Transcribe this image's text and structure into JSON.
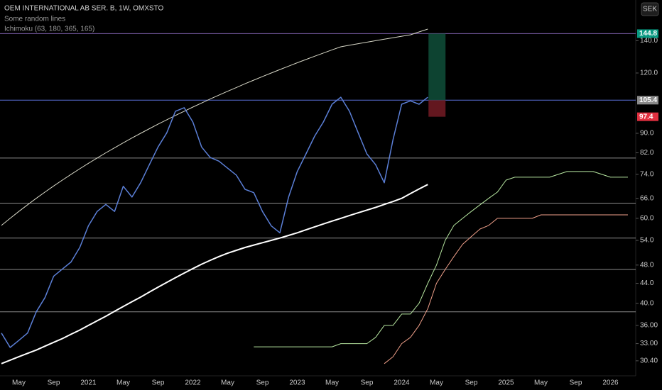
{
  "chart_data": {
    "type": "line",
    "title": "OEM INTERNATIONAL AB SER. B, 1W, OMXSTO",
    "legend": [
      "Some random lines",
      "Ichimoku (63, 180, 365, 165)"
    ],
    "currency": "SEK",
    "log_scale": true,
    "ylim": [
      28.3,
      170
    ],
    "yticks": [
      {
        "value": 140,
        "label": "140.0"
      },
      {
        "value": 120,
        "label": "120.0"
      },
      {
        "value": 90,
        "label": "90.0"
      },
      {
        "value": 82,
        "label": "82.0"
      },
      {
        "value": 74,
        "label": "74.0"
      },
      {
        "value": 66,
        "label": "66.0"
      },
      {
        "value": 60,
        "label": "60.0"
      },
      {
        "value": 54,
        "label": "54.0"
      },
      {
        "value": 48,
        "label": "48.0"
      },
      {
        "value": 44,
        "label": "44.0"
      },
      {
        "value": 40,
        "label": "40.0"
      },
      {
        "value": 36,
        "label": "36.00"
      },
      {
        "value": 33,
        "label": "33.00"
      },
      {
        "value": 30.4,
        "label": "30.40"
      }
    ],
    "categories": [
      null,
      null,
      "May",
      null,
      null,
      null,
      "Sep",
      null,
      null,
      null,
      "2021",
      null,
      null,
      null,
      "May",
      null,
      null,
      null,
      "Sep",
      null,
      null,
      null,
      "2022",
      null,
      null,
      null,
      "May",
      null,
      null,
      null,
      "Sep",
      null,
      null,
      null,
      "2023",
      null,
      null,
      null,
      "May",
      null,
      null,
      null,
      "Sep",
      null,
      null,
      null,
      "2024",
      null,
      null,
      null,
      "May",
      null,
      null,
      null,
      "Sep",
      null,
      null,
      null,
      "2025",
      null,
      null,
      null,
      "May",
      null,
      null,
      null,
      "Sep",
      null,
      null,
      null,
      "2026",
      null,
      null
    ],
    "hlines": [
      144.8,
      105.4,
      80,
      64.5,
      54.6,
      47,
      38.4
    ],
    "hline_colors": [
      "#7b5ea8",
      "#5a6fd8",
      "#8a8a8a",
      "#8a8a8a",
      "#8a8a8a",
      "#8a8a8a",
      "#8a8a8a"
    ],
    "position": {
      "entry": 105.4,
      "target": 144.8,
      "stop": 97.4
    },
    "series": [
      {
        "color": "#d8d8c8",
        "width": 1,
        "values": [
          58,
          60,
          62,
          64,
          66,
          68,
          70,
          72,
          74,
          76,
          78,
          80,
          82,
          84,
          86,
          88,
          90,
          92,
          94,
          96,
          98,
          100,
          102,
          104,
          106,
          108,
          110,
          112,
          114,
          116,
          118,
          120,
          122,
          124,
          126,
          128,
          130,
          132,
          134,
          136,
          137,
          138,
          139,
          140,
          141,
          142,
          143,
          144,
          146,
          148,
          null,
          null,
          null,
          null,
          null,
          null,
          null,
          null,
          null,
          null,
          null,
          null,
          null,
          null,
          null,
          null,
          null,
          null,
          null,
          null,
          null,
          null,
          null
        ]
      },
      {
        "color": "#ffffff",
        "width": 2,
        "values": [
          30,
          30.5,
          31,
          31.5,
          32,
          32.6,
          33.2,
          33.8,
          34.5,
          35.2,
          36,
          36.8,
          37.6,
          38.5,
          39.4,
          40.3,
          41.2,
          42.2,
          43.2,
          44.2,
          45.2,
          46.2,
          47.2,
          48.2,
          49.1,
          50,
          50.8,
          51.5,
          52.2,
          52.8,
          53.4,
          54,
          54.6,
          55.3,
          56,
          56.8,
          57.6,
          58.4,
          59.2,
          60,
          60.8,
          61.6,
          62.4,
          63.2,
          64.1,
          65,
          66,
          67.5,
          69,
          70.5,
          null,
          null,
          null,
          null,
          null,
          null,
          null,
          null,
          null,
          null,
          null,
          null,
          null,
          null,
          null,
          null,
          null,
          null,
          null,
          null,
          null,
          null,
          null
        ]
      },
      {
        "color": "#5b7fd6",
        "width": 1.5,
        "values": [
          34.7,
          32.4,
          33.5,
          34.7,
          38.4,
          41.1,
          45.5,
          47.1,
          48.7,
          52.2,
          57.9,
          62,
          64.1,
          62,
          69.9,
          66.4,
          71.1,
          77.5,
          84.3,
          90.2,
          100,
          101.7,
          95,
          84.3,
          80.2,
          78.8,
          76.2,
          73.7,
          68.9,
          67.8,
          62,
          57.9,
          56,
          66.4,
          75,
          81.6,
          88.8,
          95,
          103.4,
          106.9,
          100,
          90.2,
          81.6,
          77.5,
          71.1,
          87.3,
          103.4,
          105.1,
          103.4,
          106.9,
          null,
          null,
          null,
          null,
          null,
          null,
          null,
          null,
          null,
          null,
          null,
          null,
          null,
          null,
          null,
          null,
          null,
          null,
          null,
          null,
          null,
          null,
          null
        ]
      },
      {
        "color": "#b6e6a0",
        "width": 1,
        "values": [
          null,
          null,
          null,
          null,
          null,
          null,
          null,
          null,
          null,
          null,
          null,
          null,
          null,
          null,
          null,
          null,
          null,
          null,
          null,
          null,
          null,
          null,
          null,
          null,
          null,
          null,
          null,
          null,
          null,
          32.5,
          32.5,
          32.5,
          32.5,
          32.5,
          32.5,
          32.5,
          32.5,
          32.5,
          32.5,
          33,
          33,
          33,
          33,
          34,
          36,
          36,
          38,
          38,
          40,
          44,
          48,
          54,
          58,
          60,
          62,
          64,
          66,
          68,
          72,
          73,
          73,
          73,
          73,
          73,
          74,
          75,
          75,
          75,
          75,
          74,
          73,
          73,
          73
        ]
      },
      {
        "color": "#f0a08a",
        "width": 1,
        "values": [
          null,
          null,
          null,
          null,
          null,
          null,
          null,
          null,
          null,
          null,
          null,
          null,
          null,
          null,
          null,
          null,
          null,
          null,
          null,
          null,
          null,
          null,
          null,
          null,
          null,
          null,
          null,
          null,
          null,
          null,
          null,
          null,
          null,
          null,
          null,
          null,
          null,
          null,
          null,
          null,
          null,
          null,
          null,
          null,
          30,
          31,
          33,
          34,
          36,
          39,
          44,
          47,
          50,
          53,
          55,
          57,
          58,
          60,
          60,
          60,
          60,
          60,
          61,
          61,
          61,
          61,
          61,
          61,
          61,
          61,
          61,
          61,
          61
        ]
      }
    ]
  }
}
